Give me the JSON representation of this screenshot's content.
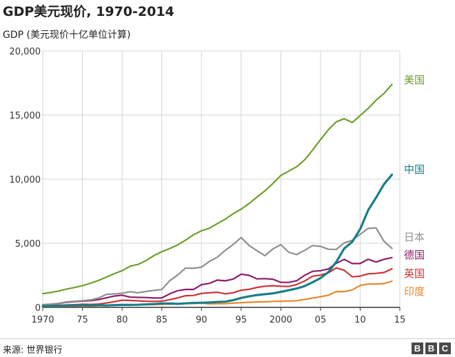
{
  "header": {
    "title": "GDP美元现价, 1970-2014",
    "subtitle": "GDP (美元现价十亿单位计算)"
  },
  "footer": {
    "source": "来源: 世界银行",
    "logo_letters": [
      "B",
      "B",
      "C"
    ]
  },
  "chart_data": {
    "type": "line",
    "title": "GDP美元现价, 1970-2014",
    "ylabel": "GDP (美元现价十亿单位计算)",
    "xlabel": "",
    "xlim": [
      1970,
      2015
    ],
    "ylim": [
      0,
      20000
    ],
    "grid": true,
    "x_ticks": [
      1970,
      1975,
      1980,
      1985,
      1990,
      1995,
      2000,
      2005,
      2010,
      2015
    ],
    "x_tick_labels": [
      "1970",
      "75",
      "80",
      "85",
      "90",
      "95",
      "2000",
      "05",
      "10",
      "15"
    ],
    "y_ticks": [
      0,
      5000,
      10000,
      15000,
      20000
    ],
    "y_tick_labels": [
      "0",
      "5,000",
      "10,000",
      "15,000",
      "20,000"
    ],
    "x": [
      1970,
      1971,
      1972,
      1973,
      1974,
      1975,
      1976,
      1977,
      1978,
      1979,
      1980,
      1981,
      1982,
      1983,
      1984,
      1985,
      1986,
      1987,
      1988,
      1989,
      1990,
      1991,
      1992,
      1993,
      1994,
      1995,
      1996,
      1997,
      1998,
      1999,
      2000,
      2001,
      2002,
      2003,
      2004,
      2005,
      2006,
      2007,
      2008,
      2009,
      2010,
      2011,
      2012,
      2013,
      2014
    ],
    "series": [
      {
        "name": "美国",
        "color": "#6e9e2b",
        "values": [
          1070,
          1160,
          1280,
          1430,
          1550,
          1690,
          1880,
          2090,
          2360,
          2630,
          2860,
          3210,
          3350,
          3640,
          4040,
          4350,
          4590,
          4870,
          5250,
          5660,
          5980,
          6170,
          6540,
          6880,
          7310,
          7660,
          8100,
          8610,
          9090,
          9660,
          10290,
          10630,
          10980,
          11510,
          12270,
          13090,
          13860,
          14480,
          14720,
          14420,
          14960,
          15520,
          16160,
          16690,
          17390
        ]
      },
      {
        "name": "中国",
        "color": "#177e89",
        "values": [
          93,
          100,
          114,
          139,
          144,
          163,
          154,
          175,
          149,
          179,
          191,
          196,
          205,
          231,
          260,
          310,
          300,
          273,
          312,
          348,
          360,
          383,
          427,
          444,
          564,
          734,
          863,
          961,
          1029,
          1094,
          1211,
          1339,
          1471,
          1660,
          1955,
          2286,
          2752,
          3552,
          4598,
          5110,
          6101,
          7573,
          8561,
          9607,
          10351
        ]
      },
      {
        "name": "日本",
        "color": "#8f8f8f",
        "values": [
          210,
          240,
          310,
          430,
          480,
          520,
          580,
          720,
          1010,
          1050,
          1100,
          1220,
          1140,
          1240,
          1320,
          1390,
          2080,
          2520,
          3070,
          3050,
          3140,
          3580,
          3910,
          4450,
          4910,
          5450,
          4830,
          4420,
          4030,
          4560,
          4890,
          4300,
          4120,
          4450,
          4820,
          4760,
          4530,
          4520,
          5040,
          5230,
          5700,
          6160,
          6200,
          5160,
          4600
        ]
      },
      {
        "name": "德国",
        "color": "#8b1d6b",
        "values": [
          210,
          250,
          300,
          400,
          450,
          490,
          520,
          600,
          740,
          880,
          950,
          800,
          780,
          770,
          730,
          730,
          1060,
          1300,
          1400,
          1400,
          1770,
          1870,
          2130,
          2070,
          2210,
          2590,
          2500,
          2220,
          2240,
          2200,
          1950,
          1950,
          2080,
          2500,
          2810,
          2860,
          3000,
          3440,
          3750,
          3420,
          3420,
          3760,
          3540,
          3750,
          3880
        ]
      },
      {
        "name": "英国",
        "color": "#cc3333",
        "values": [
          130,
          150,
          170,
          190,
          210,
          240,
          230,
          260,
          340,
          440,
          560,
          540,
          510,
          480,
          460,
          490,
          600,
          740,
          910,
          930,
          1090,
          1140,
          1180,
          1060,
          1140,
          1340,
          1410,
          1560,
          1650,
          1690,
          1650,
          1630,
          1780,
          2060,
          2430,
          2520,
          2700,
          3080,
          2890,
          2380,
          2440,
          2620,
          2650,
          2720,
          3010
        ]
      },
      {
        "name": "印度",
        "color": "#e8872a",
        "values": [
          62,
          67,
          71,
          85,
          99,
          98,
          102,
          121,
          137,
          152,
          186,
          196,
          204,
          222,
          215,
          236,
          252,
          283,
          301,
          301,
          327,
          274,
          293,
          284,
          333,
          367,
          400,
          423,
          428,
          467,
          477,
          494,
          524,
          618,
          722,
          834,
          949,
          1239,
          1224,
          1365,
          1708,
          1823,
          1828,
          1857,
          2042
        ]
      }
    ]
  }
}
